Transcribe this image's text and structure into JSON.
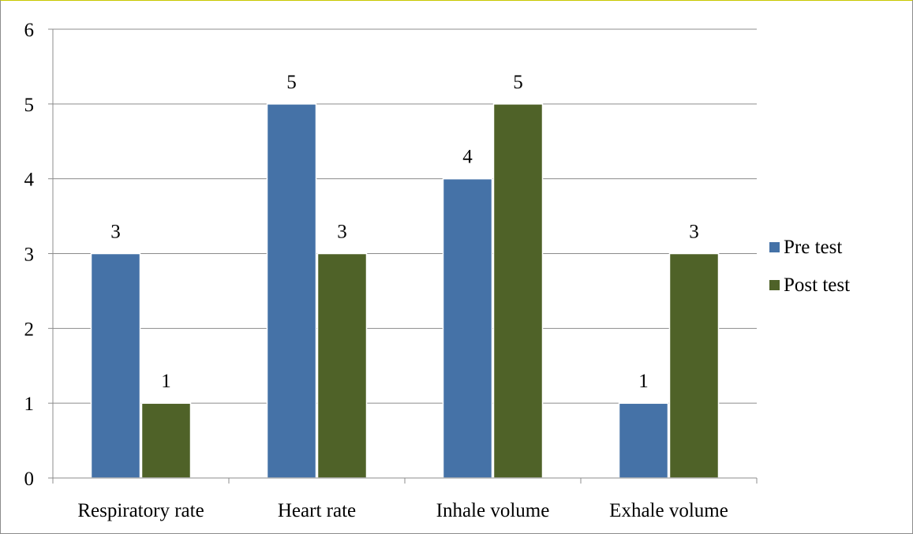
{
  "chart_data": {
    "type": "bar",
    "categories": [
      "Respiratory rate",
      "Heart rate",
      "Inhale volume",
      "Exhale volume"
    ],
    "series": [
      {
        "name": "Pre test",
        "color": "#4572a7",
        "values": [
          3,
          5,
          4,
          1
        ]
      },
      {
        "name": "Post test",
        "color": "#4f6228",
        "values": [
          1,
          3,
          5,
          3
        ]
      }
    ],
    "ylim": [
      0,
      6
    ],
    "yticks": [
      0,
      1,
      2,
      3,
      4,
      5,
      6
    ],
    "grid": true,
    "legend": "right",
    "data_labels": true
  }
}
